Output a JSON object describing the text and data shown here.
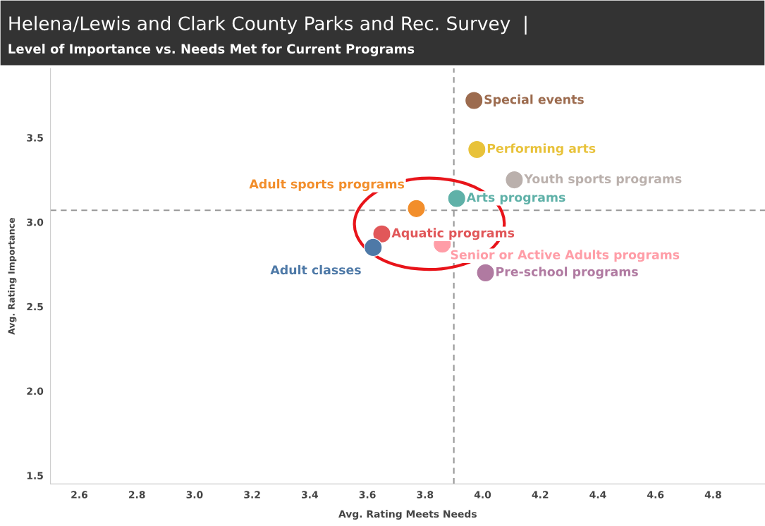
{
  "chart_data": {
    "type": "scatter",
    "title": "Helena/Lewis and Clark County Parks and Rec. Survey  |",
    "subtitle": "Level of Importance vs. Needs Met for Current Programs",
    "xlabel": "Avg. Rating Meets Needs",
    "ylabel": "Avg. Rating Importance",
    "series": [
      {
        "name": "Special events",
        "color": "#9c6b4e",
        "x": [
          3.97
        ],
        "values": [
          3.72
        ]
      },
      {
        "name": "Performing arts",
        "color": "#e8c23a",
        "x": [
          3.98
        ],
        "values": [
          3.43
        ]
      },
      {
        "name": "Youth sports programs",
        "color": "#bab0ac",
        "x": [
          4.11
        ],
        "values": [
          3.25
        ]
      },
      {
        "name": "Arts programs",
        "color": "#5fb1a8",
        "x": [
          3.91
        ],
        "values": [
          3.14
        ]
      },
      {
        "name": "Adult sports programs",
        "color": "#f28e2b",
        "x": [
          3.77
        ],
        "values": [
          3.08
        ]
      },
      {
        "name": "Aquatic programs",
        "color": "#e15759",
        "x": [
          3.65
        ],
        "values": [
          2.93
        ]
      },
      {
        "name": "Adult classes",
        "color": "#4e79a7",
        "x": [
          3.62
        ],
        "values": [
          2.85
        ]
      },
      {
        "name": "Senior or Active Adults programs",
        "color": "#ff9da7",
        "x": [
          3.86
        ],
        "values": [
          2.87
        ]
      },
      {
        "name": "Pre-school programs",
        "color": "#b07aa1",
        "x": [
          4.01
        ],
        "values": [
          2.7
        ]
      }
    ],
    "xlim": [
      2.5,
      4.98
    ],
    "xticks": [
      2.6,
      2.8,
      {
        "value": 3,
        "label": "3.0"
      },
      3.2,
      3.4,
      3.6,
      3.8,
      {
        "value": 4,
        "label": "4.0"
      },
      4.2,
      4.4,
      4.6,
      4.8
    ],
    "ylim": [
      1.45,
      3.91
    ],
    "yticks": [
      1.5,
      {
        "value": 2,
        "label": "2.0"
      },
      2.5,
      {
        "value": 3,
        "label": "3.0"
      },
      3.5
    ],
    "ref_lines": [
      {
        "axis": "x",
        "value": 3.9,
        "color": "#999999",
        "line_style": "dashed"
      },
      {
        "axis": "y",
        "value": 3.07,
        "color": "#999999",
        "line_style": "dashed"
      }
    ],
    "grid": false,
    "legend": false,
    "marker": "circle"
  }
}
